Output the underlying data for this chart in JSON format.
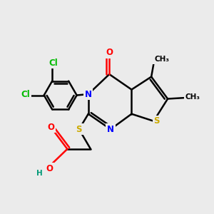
{
  "bg_color": "#ebebeb",
  "atom_colors": {
    "C": "#000000",
    "N": "#0000ff",
    "O": "#ff0000",
    "S": "#ccaa00",
    "Cl": "#00bb00",
    "H": "#009977"
  },
  "bond_lw": 1.8,
  "label_fs": 8.5,
  "label_fs_small": 7.5
}
